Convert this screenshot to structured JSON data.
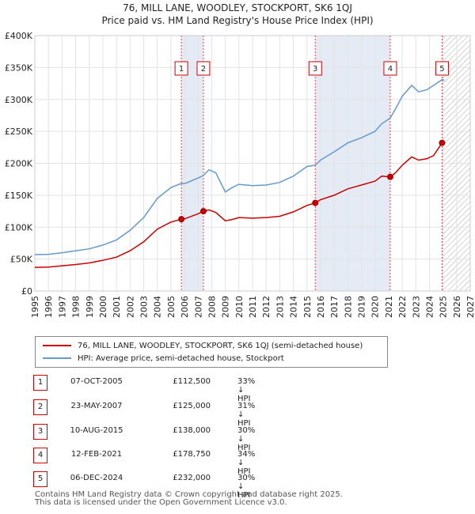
{
  "chart_data": {
    "type": "line",
    "title": "76, MILL LANE, WOODLEY, STOCKPORT, SK6 1QJ",
    "subtitle": "Price paid vs. HM Land Registry's House Price Index (HPI)",
    "xlabel": "",
    "ylabel": "",
    "xlim": [
      1995,
      2027
    ],
    "ylim": [
      0,
      400000
    ],
    "grid": true,
    "y_ticks": [
      {
        "value": 0,
        "label": "£0"
      },
      {
        "value": 50000,
        "label": "£50K"
      },
      {
        "value": 100000,
        "label": "£100K"
      },
      {
        "value": 150000,
        "label": "£150K"
      },
      {
        "value": 200000,
        "label": "£200K"
      },
      {
        "value": 250000,
        "label": "£250K"
      },
      {
        "value": 300000,
        "label": "£300K"
      },
      {
        "value": 350000,
        "label": "£350K"
      },
      {
        "value": 400000,
        "label": "£400K"
      }
    ],
    "x_ticks": [
      1995,
      1996,
      1997,
      1998,
      1999,
      2000,
      2001,
      2002,
      2003,
      2004,
      2005,
      2006,
      2007,
      2008,
      2009,
      2010,
      2011,
      2012,
      2013,
      2014,
      2015,
      2016,
      2017,
      2018,
      2019,
      2020,
      2021,
      2022,
      2023,
      2024,
      2025,
      2026,
      2027
    ],
    "future_hatch_from": 2025.0,
    "series": [
      {
        "name": "HPI: Average price, semi-detached house, Stockport",
        "color": "#6699cc",
        "points": [
          [
            1995,
            57000
          ],
          [
            1996,
            57500
          ],
          [
            1997,
            60000
          ],
          [
            1998,
            63000
          ],
          [
            1999,
            66000
          ],
          [
            2000,
            72000
          ],
          [
            2001,
            80000
          ],
          [
            2002,
            95000
          ],
          [
            2003,
            115000
          ],
          [
            2004,
            145000
          ],
          [
            2005,
            162000
          ],
          [
            2005.77,
            168500
          ],
          [
            2006,
            168000
          ],
          [
            2007,
            177000
          ],
          [
            2007.39,
            181000
          ],
          [
            2007.8,
            190000
          ],
          [
            2008.3,
            185000
          ],
          [
            2009,
            155000
          ],
          [
            2009.5,
            162000
          ],
          [
            2010,
            167000
          ],
          [
            2011,
            165000
          ],
          [
            2012,
            166000
          ],
          [
            2013,
            170000
          ],
          [
            2014,
            180000
          ],
          [
            2015,
            195000
          ],
          [
            2015.61,
            197000
          ],
          [
            2016,
            205000
          ],
          [
            2017,
            218000
          ],
          [
            2018,
            232000
          ],
          [
            2019,
            240000
          ],
          [
            2020,
            250000
          ],
          [
            2020.5,
            262000
          ],
          [
            2021.12,
            271000
          ],
          [
            2021.5,
            285000
          ],
          [
            2022,
            305000
          ],
          [
            2022.7,
            322000
          ],
          [
            2023.2,
            312000
          ],
          [
            2023.8,
            315000
          ],
          [
            2024.3,
            322000
          ],
          [
            2024.93,
            331000
          ],
          [
            2025.1,
            330000
          ]
        ]
      },
      {
        "name": "76, MILL LANE, WOODLEY, STOCKPORT, SK6 1QJ (semi-detached house)",
        "color": "#cc0000",
        "points": [
          [
            1995,
            37000
          ],
          [
            1996,
            37500
          ],
          [
            1997,
            39500
          ],
          [
            1998,
            41500
          ],
          [
            1999,
            44000
          ],
          [
            2000,
            48000
          ],
          [
            2001,
            53000
          ],
          [
            2002,
            63000
          ],
          [
            2003,
            77000
          ],
          [
            2004,
            97000
          ],
          [
            2005,
            108000
          ],
          [
            2005.77,
            112500
          ],
          [
            2006,
            113000
          ],
          [
            2007,
            121000
          ],
          [
            2007.39,
            125000
          ],
          [
            2007.8,
            127000
          ],
          [
            2008.3,
            123000
          ],
          [
            2009,
            110000
          ],
          [
            2009.5,
            112000
          ],
          [
            2010,
            115000
          ],
          [
            2011,
            114000
          ],
          [
            2012,
            115000
          ],
          [
            2013,
            117000
          ],
          [
            2014,
            124000
          ],
          [
            2015,
            134000
          ],
          [
            2015.61,
            138000
          ],
          [
            2016,
            143000
          ],
          [
            2017,
            150000
          ],
          [
            2018,
            160000
          ],
          [
            2019,
            166000
          ],
          [
            2020,
            172000
          ],
          [
            2020.5,
            180000
          ],
          [
            2021.12,
            178750
          ],
          [
            2021.5,
            185000
          ],
          [
            2022,
            197000
          ],
          [
            2022.7,
            210000
          ],
          [
            2023.2,
            205000
          ],
          [
            2023.8,
            207000
          ],
          [
            2024.3,
            212000
          ],
          [
            2024.93,
            232000
          ],
          [
            2025.1,
            230000
          ]
        ]
      }
    ],
    "sales": [
      {
        "number": "1",
        "x": 2005.77,
        "y": 112500
      },
      {
        "number": "2",
        "x": 2007.39,
        "y": 125000
      },
      {
        "number": "3",
        "x": 2015.61,
        "y": 138000
      },
      {
        "number": "4",
        "x": 2021.12,
        "y": 178750
      },
      {
        "number": "5",
        "x": 2024.93,
        "y": 232000
      }
    ],
    "sale_band_ranges": [
      [
        2005.77,
        2007.39
      ],
      [
        2015.61,
        2021.12
      ]
    ]
  },
  "legend": {
    "property_label": "76, MILL LANE, WOODLEY, STOCKPORT, SK6 1QJ (semi-detached house)",
    "hpi_label": "HPI: Average price, semi-detached house, Stockport",
    "property_color": "#cc0000",
    "hpi_color": "#6699cc"
  },
  "sales_table": [
    {
      "number": "1",
      "date": "07-OCT-2005",
      "price": "£112,500",
      "hpi": "33% ↓ HPI"
    },
    {
      "number": "2",
      "date": "23-MAY-2007",
      "price": "£125,000",
      "hpi": "31% ↓ HPI"
    },
    {
      "number": "3",
      "date": "10-AUG-2015",
      "price": "£138,000",
      "hpi": "30% ↓ HPI"
    },
    {
      "number": "4",
      "date": "12-FEB-2021",
      "price": "£178,750",
      "hpi": "34% ↓ HPI"
    },
    {
      "number": "5",
      "date": "06-DEC-2024",
      "price": "£232,000",
      "hpi": "30% ↓ HPI"
    }
  ],
  "footer": {
    "line1": "Contains HM Land Registry data © Crown copyright and database right 2025.",
    "line2": "This data is licensed under the Open Government Licence v3.0."
  }
}
